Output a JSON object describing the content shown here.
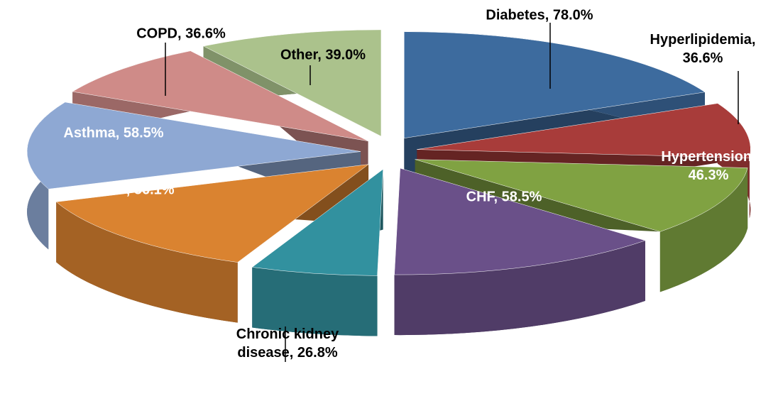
{
  "chart_data": {
    "type": "pie",
    "values": [
      78.0,
      36.6,
      46.3,
      58.5,
      26.8,
      56.1,
      58.5,
      36.6,
      39.0
    ],
    "value_labels": [
      "Diabetes, 78.0%",
      "Hyperlipidemia, 36.6%",
      "Hypertension, 46.3%",
      "CHF, 58.5%",
      "Chronic kidney disease, 26.8%",
      "CAD, 56.1%",
      "Asthma, 58.5%",
      "COPD, 36.6%",
      "Other, 39.0%"
    ],
    "colors": [
      "#3d6b9e",
      "#a83c3a",
      "#80a242",
      "#6a5089",
      "#32919f",
      "#da8330",
      "#8ea8d3",
      "#cf8b88",
      "#abc28c"
    ]
  }
}
